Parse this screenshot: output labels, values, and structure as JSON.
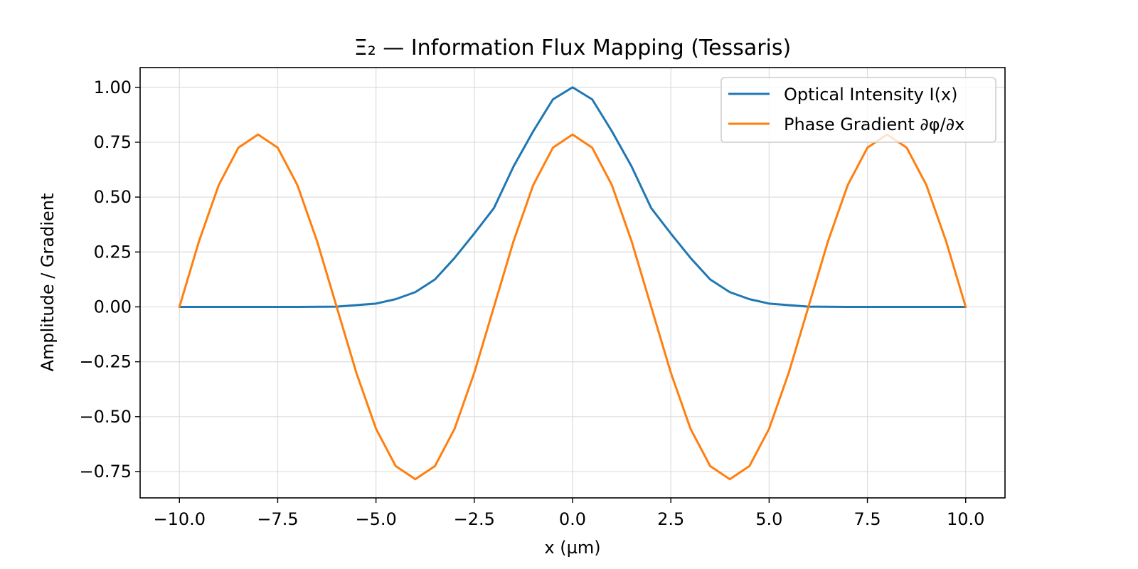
{
  "chart_data": {
    "type": "line",
    "title": "Ξ₂ — Information Flux Mapping (Tessaris)",
    "xlabel": "x (µm)",
    "ylabel": "Amplitude / Gradient",
    "xlim": [
      -11.0,
      11.0
    ],
    "ylim": [
      -0.87,
      1.09
    ],
    "grid": true,
    "legend_position": "upper-right",
    "xticks": [
      -10.0,
      -7.5,
      -5.0,
      -2.5,
      0.0,
      2.5,
      5.0,
      7.5,
      10.0
    ],
    "xtick_labels": [
      "−10.0",
      "−7.5",
      "−5.0",
      "−2.5",
      "0.0",
      "2.5",
      "5.0",
      "7.5",
      "10.0"
    ],
    "yticks": [
      1.0,
      0.75,
      0.5,
      0.25,
      0.0,
      -0.25,
      -0.5,
      -0.75
    ],
    "ytick_labels": [
      "1.00",
      "0.75",
      "0.50",
      "0.25",
      "0.00",
      "−0.25",
      "−0.50",
      "−0.75"
    ],
    "series": [
      {
        "name": "Optical Intensity I(x)",
        "color": "#1f77b4",
        "x": [
          -10,
          -9,
          -8,
          -7,
          -6,
          -5,
          -4.5,
          -4,
          -3.5,
          -3,
          -2.5,
          -2,
          -1.5,
          -1,
          -0.5,
          0,
          0.5,
          1,
          1.5,
          2,
          2.5,
          3,
          3.5,
          4,
          4.5,
          5,
          6,
          7,
          8,
          9,
          10
        ],
        "y": [
          0.0,
          0.0,
          0.0,
          0.0,
          0.001,
          0.015,
          0.035,
          0.067,
          0.125,
          0.223,
          0.334,
          0.45,
          0.64,
          0.8,
          0.945,
          1.0,
          0.945,
          0.8,
          0.64,
          0.45,
          0.334,
          0.223,
          0.125,
          0.067,
          0.035,
          0.015,
          0.001,
          0.0,
          0.0,
          0.0,
          0.0
        ]
      },
      {
        "name": "Phase Gradient ∂φ/∂x",
        "color": "#ff7f0e",
        "x": [
          -10,
          -9.5,
          -9,
          -8.5,
          -8,
          -7.5,
          -7,
          -6.5,
          -6,
          -5.5,
          -5,
          -4.5,
          -4,
          -3.5,
          -3,
          -2.5,
          -2,
          -1.5,
          -1,
          -0.5,
          0,
          0.5,
          1,
          1.5,
          2,
          2.5,
          3,
          3.5,
          4,
          4.5,
          5,
          5.5,
          6,
          6.5,
          7,
          7.5,
          8,
          8.5,
          9,
          9.5,
          10
        ],
        "y": [
          0.0,
          0.3,
          0.555,
          0.725,
          0.785,
          0.725,
          0.555,
          0.3,
          0.0,
          -0.3,
          -0.555,
          -0.725,
          -0.785,
          -0.725,
          -0.555,
          -0.3,
          0.0,
          0.3,
          0.555,
          0.725,
          0.785,
          0.725,
          0.555,
          0.3,
          0.0,
          -0.3,
          -0.555,
          -0.725,
          -0.785,
          -0.725,
          -0.555,
          -0.3,
          0.0,
          0.3,
          0.555,
          0.725,
          0.785,
          0.725,
          0.555,
          0.3,
          0.0
        ]
      }
    ]
  }
}
